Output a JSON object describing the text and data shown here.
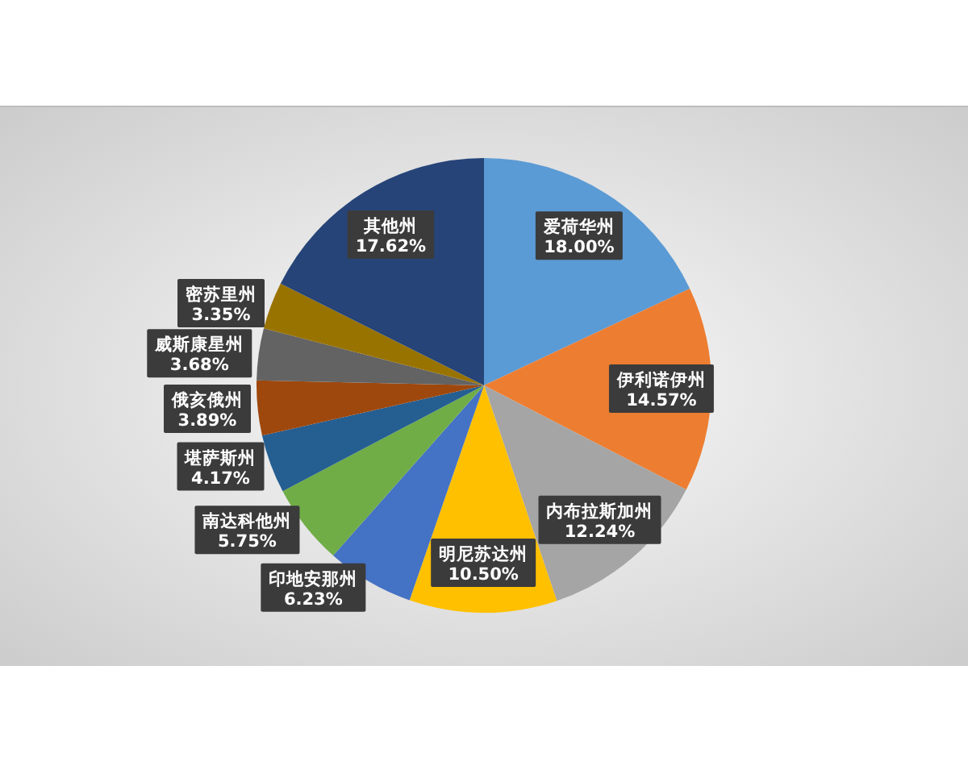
{
  "chart_data": {
    "type": "pie",
    "categories": [
      "爱荷华州",
      "伊利诺伊州",
      "内布拉斯加州",
      "明尼苏达州",
      "印地安那州",
      "南达科他州",
      "堪萨斯州",
      "俄亥俄州",
      "威斯康星州",
      "密苏里州",
      "其他州"
    ],
    "values": [
      18.0,
      14.57,
      12.24,
      10.5,
      6.23,
      5.75,
      4.17,
      3.89,
      3.68,
      3.35,
      17.62
    ],
    "value_labels": [
      "18.00%",
      "14.57%",
      "12.24%",
      "10.50%",
      "6.23%",
      "5.75%",
      "4.17%",
      "3.89%",
      "3.68%",
      "3.35%",
      "17.62%"
    ],
    "colors": [
      "#5b9bd5",
      "#ed7d31",
      "#a5a5a5",
      "#ffc000",
      "#4472c4",
      "#70ad47",
      "#255e91",
      "#9e480e",
      "#636363",
      "#997300",
      "#264478"
    ]
  }
}
